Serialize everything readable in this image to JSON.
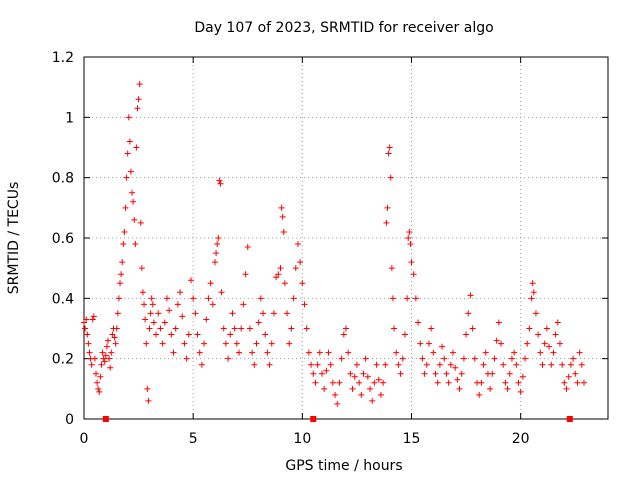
{
  "chart_data": {
    "type": "scatter",
    "title": "Day 107 of 2023, SRMTID for receiver algo",
    "xlabel": "GPS time / hours",
    "ylabel": "SRMTID / TECUs",
    "xlim": [
      0,
      24
    ],
    "ylim": [
      0,
      1.2
    ],
    "x_ticks": [
      0,
      5,
      10,
      15,
      20
    ],
    "x_tick_labels": [
      "0",
      "5",
      "10",
      "15",
      "20"
    ],
    "y_ticks": [
      0,
      0.2,
      0.4,
      0.6,
      0.8,
      1.0,
      1.2
    ],
    "y_tick_labels": [
      "0",
      "0.2",
      "0.4",
      "0.6",
      "0.8",
      "1",
      "1.2"
    ],
    "grid": true,
    "marker": "+",
    "color": "#ff0000",
    "gap_markers_x": [
      1.0,
      10.5,
      22.25
    ],
    "series": [
      {
        "name": "SRMTID",
        "points": [
          [
            0.0,
            0.32
          ],
          [
            0.05,
            0.3
          ],
          [
            0.1,
            0.33
          ],
          [
            0.15,
            0.28
          ],
          [
            0.2,
            0.25
          ],
          [
            0.25,
            0.22
          ],
          [
            0.3,
            0.2
          ],
          [
            0.35,
            0.18
          ],
          [
            0.4,
            0.33
          ],
          [
            0.45,
            0.34
          ],
          [
            0.5,
            0.2
          ],
          [
            0.55,
            0.15
          ],
          [
            0.6,
            0.12
          ],
          [
            0.65,
            0.1
          ],
          [
            0.7,
            0.09
          ],
          [
            0.75,
            0.14
          ],
          [
            0.8,
            0.18
          ],
          [
            0.85,
            0.22
          ],
          [
            0.9,
            0.2
          ],
          [
            0.95,
            0.19
          ],
          [
            1.0,
            0.21
          ],
          [
            1.05,
            0.24
          ],
          [
            1.1,
            0.26
          ],
          [
            1.15,
            0.2
          ],
          [
            1.2,
            0.17
          ],
          [
            1.25,
            0.22
          ],
          [
            1.3,
            0.28
          ],
          [
            1.35,
            0.3
          ],
          [
            1.4,
            0.27
          ],
          [
            1.45,
            0.25
          ],
          [
            1.5,
            0.3
          ],
          [
            1.55,
            0.35
          ],
          [
            1.6,
            0.4
          ],
          [
            1.65,
            0.45
          ],
          [
            1.7,
            0.48
          ],
          [
            1.75,
            0.52
          ],
          [
            1.8,
            0.58
          ],
          [
            1.85,
            0.62
          ],
          [
            1.9,
            0.7
          ],
          [
            1.95,
            0.8
          ],
          [
            2.0,
            0.88
          ],
          [
            2.05,
            1.0
          ],
          [
            2.1,
            0.92
          ],
          [
            2.15,
            0.82
          ],
          [
            2.2,
            0.75
          ],
          [
            2.25,
            0.72
          ],
          [
            2.3,
            0.66
          ],
          [
            2.35,
            0.58
          ],
          [
            2.4,
            0.9
          ],
          [
            2.45,
            1.03
          ],
          [
            2.5,
            1.06
          ],
          [
            2.55,
            1.11
          ],
          [
            2.6,
            0.65
          ],
          [
            2.65,
            0.5
          ],
          [
            2.7,
            0.42
          ],
          [
            2.75,
            0.38
          ],
          [
            2.8,
            0.33
          ],
          [
            2.85,
            0.25
          ],
          [
            2.9,
            0.1
          ],
          [
            2.95,
            0.06
          ],
          [
            3.0,
            0.3
          ],
          [
            3.05,
            0.35
          ],
          [
            3.1,
            0.4
          ],
          [
            3.15,
            0.38
          ],
          [
            3.2,
            0.32
          ],
          [
            3.3,
            0.28
          ],
          [
            3.4,
            0.35
          ],
          [
            3.5,
            0.3
          ],
          [
            3.6,
            0.25
          ],
          [
            3.7,
            0.32
          ],
          [
            3.8,
            0.4
          ],
          [
            3.9,
            0.36
          ],
          [
            4.0,
            0.28
          ],
          [
            4.1,
            0.22
          ],
          [
            4.2,
            0.3
          ],
          [
            4.3,
            0.38
          ],
          [
            4.4,
            0.42
          ],
          [
            4.5,
            0.34
          ],
          [
            4.6,
            0.25
          ],
          [
            4.7,
            0.2
          ],
          [
            4.8,
            0.28
          ],
          [
            4.9,
            0.46
          ],
          [
            5.0,
            0.4
          ],
          [
            5.1,
            0.35
          ],
          [
            5.2,
            0.28
          ],
          [
            5.3,
            0.22
          ],
          [
            5.4,
            0.18
          ],
          [
            5.5,
            0.25
          ],
          [
            5.6,
            0.33
          ],
          [
            5.7,
            0.4
          ],
          [
            5.8,
            0.45
          ],
          [
            5.9,
            0.38
          ],
          [
            6.0,
            0.52
          ],
          [
            6.05,
            0.55
          ],
          [
            6.1,
            0.58
          ],
          [
            6.15,
            0.6
          ],
          [
            6.2,
            0.79
          ],
          [
            6.25,
            0.78
          ],
          [
            6.3,
            0.42
          ],
          [
            6.4,
            0.3
          ],
          [
            6.5,
            0.25
          ],
          [
            6.6,
            0.2
          ],
          [
            6.7,
            0.28
          ],
          [
            6.8,
            0.35
          ],
          [
            6.9,
            0.3
          ],
          [
            7.0,
            0.25
          ],
          [
            7.1,
            0.22
          ],
          [
            7.2,
            0.3
          ],
          [
            7.3,
            0.38
          ],
          [
            7.4,
            0.48
          ],
          [
            7.5,
            0.57
          ],
          [
            7.6,
            0.3
          ],
          [
            7.7,
            0.22
          ],
          [
            7.8,
            0.18
          ],
          [
            7.9,
            0.25
          ],
          [
            8.0,
            0.32
          ],
          [
            8.1,
            0.4
          ],
          [
            8.2,
            0.35
          ],
          [
            8.3,
            0.28
          ],
          [
            8.4,
            0.22
          ],
          [
            8.5,
            0.18
          ],
          [
            8.6,
            0.25
          ],
          [
            8.7,
            0.35
          ],
          [
            8.8,
            0.47
          ],
          [
            8.9,
            0.48
          ],
          [
            9.0,
            0.5
          ],
          [
            9.05,
            0.7
          ],
          [
            9.1,
            0.67
          ],
          [
            9.15,
            0.62
          ],
          [
            9.2,
            0.45
          ],
          [
            9.3,
            0.35
          ],
          [
            9.4,
            0.25
          ],
          [
            9.5,
            0.3
          ],
          [
            9.6,
            0.4
          ],
          [
            9.7,
            0.5
          ],
          [
            9.8,
            0.58
          ],
          [
            9.9,
            0.52
          ],
          [
            10.0,
            0.45
          ],
          [
            10.1,
            0.38
          ],
          [
            10.2,
            0.3
          ],
          [
            10.3,
            0.22
          ],
          [
            10.4,
            0.18
          ],
          [
            10.5,
            0.15
          ],
          [
            10.6,
            0.12
          ],
          [
            10.7,
            0.18
          ],
          [
            10.8,
            0.22
          ],
          [
            10.9,
            0.15
          ],
          [
            11.0,
            0.1
          ],
          [
            11.1,
            0.16
          ],
          [
            11.2,
            0.22
          ],
          [
            11.3,
            0.18
          ],
          [
            11.4,
            0.12
          ],
          [
            11.5,
            0.08
          ],
          [
            11.6,
            0.05
          ],
          [
            11.7,
            0.12
          ],
          [
            11.8,
            0.2
          ],
          [
            11.9,
            0.28
          ],
          [
            12.0,
            0.3
          ],
          [
            12.1,
            0.22
          ],
          [
            12.2,
            0.15
          ],
          [
            12.3,
            0.1
          ],
          [
            12.4,
            0.14
          ],
          [
            12.5,
            0.18
          ],
          [
            12.6,
            0.12
          ],
          [
            12.7,
            0.08
          ],
          [
            12.8,
            0.15
          ],
          [
            12.9,
            0.2
          ],
          [
            13.0,
            0.14
          ],
          [
            13.1,
            0.1
          ],
          [
            13.2,
            0.06
          ],
          [
            13.3,
            0.12
          ],
          [
            13.4,
            0.18
          ],
          [
            13.5,
            0.13
          ],
          [
            13.6,
            0.08
          ],
          [
            13.7,
            0.12
          ],
          [
            13.8,
            0.18
          ],
          [
            13.85,
            0.65
          ],
          [
            13.9,
            0.7
          ],
          [
            13.95,
            0.88
          ],
          [
            14.0,
            0.9
          ],
          [
            14.05,
            0.8
          ],
          [
            14.1,
            0.5
          ],
          [
            14.15,
            0.4
          ],
          [
            14.2,
            0.3
          ],
          [
            14.3,
            0.22
          ],
          [
            14.4,
            0.18
          ],
          [
            14.5,
            0.15
          ],
          [
            14.6,
            0.2
          ],
          [
            14.7,
            0.28
          ],
          [
            14.8,
            0.4
          ],
          [
            14.85,
            0.6
          ],
          [
            14.9,
            0.62
          ],
          [
            14.95,
            0.58
          ],
          [
            15.0,
            0.52
          ],
          [
            15.1,
            0.48
          ],
          [
            15.2,
            0.4
          ],
          [
            15.3,
            0.32
          ],
          [
            15.4,
            0.25
          ],
          [
            15.5,
            0.2
          ],
          [
            15.6,
            0.15
          ],
          [
            15.7,
            0.18
          ],
          [
            15.8,
            0.25
          ],
          [
            15.9,
            0.3
          ],
          [
            16.0,
            0.22
          ],
          [
            16.1,
            0.15
          ],
          [
            16.2,
            0.12
          ],
          [
            16.3,
            0.18
          ],
          [
            16.4,
            0.24
          ],
          [
            16.5,
            0.2
          ],
          [
            16.6,
            0.15
          ],
          [
            16.7,
            0.12
          ],
          [
            16.8,
            0.18
          ],
          [
            16.9,
            0.22
          ],
          [
            17.0,
            0.17
          ],
          [
            17.1,
            0.13
          ],
          [
            17.2,
            0.1
          ],
          [
            17.3,
            0.15
          ],
          [
            17.4,
            0.2
          ],
          [
            17.5,
            0.28
          ],
          [
            17.6,
            0.35
          ],
          [
            17.7,
            0.41
          ],
          [
            17.8,
            0.3
          ],
          [
            17.9,
            0.2
          ],
          [
            18.0,
            0.12
          ],
          [
            18.1,
            0.08
          ],
          [
            18.2,
            0.12
          ],
          [
            18.3,
            0.18
          ],
          [
            18.4,
            0.22
          ],
          [
            18.5,
            0.15
          ],
          [
            18.6,
            0.1
          ],
          [
            18.7,
            0.15
          ],
          [
            18.8,
            0.2
          ],
          [
            18.9,
            0.26
          ],
          [
            19.0,
            0.32
          ],
          [
            19.1,
            0.25
          ],
          [
            19.2,
            0.18
          ],
          [
            19.3,
            0.12
          ],
          [
            19.4,
            0.1
          ],
          [
            19.5,
            0.15
          ],
          [
            19.6,
            0.2
          ],
          [
            19.7,
            0.22
          ],
          [
            19.8,
            0.18
          ],
          [
            19.9,
            0.12
          ],
          [
            20.0,
            0.09
          ],
          [
            20.1,
            0.14
          ],
          [
            20.2,
            0.2
          ],
          [
            20.3,
            0.25
          ],
          [
            20.4,
            0.3
          ],
          [
            20.5,
            0.4
          ],
          [
            20.55,
            0.45
          ],
          [
            20.6,
            0.42
          ],
          [
            20.7,
            0.35
          ],
          [
            20.8,
            0.28
          ],
          [
            20.9,
            0.22
          ],
          [
            21.0,
            0.18
          ],
          [
            21.1,
            0.25
          ],
          [
            21.2,
            0.3
          ],
          [
            21.3,
            0.24
          ],
          [
            21.4,
            0.18
          ],
          [
            21.5,
            0.22
          ],
          [
            21.6,
            0.28
          ],
          [
            21.7,
            0.32
          ],
          [
            21.8,
            0.25
          ],
          [
            21.9,
            0.18
          ],
          [
            22.0,
            0.12
          ],
          [
            22.1,
            0.1
          ],
          [
            22.2,
            0.14
          ],
          [
            22.3,
            0.18
          ],
          [
            22.4,
            0.2
          ],
          [
            22.5,
            0.15
          ],
          [
            22.6,
            0.12
          ],
          [
            22.7,
            0.22
          ],
          [
            22.8,
            0.18
          ],
          [
            22.9,
            0.12
          ]
        ]
      }
    ]
  }
}
